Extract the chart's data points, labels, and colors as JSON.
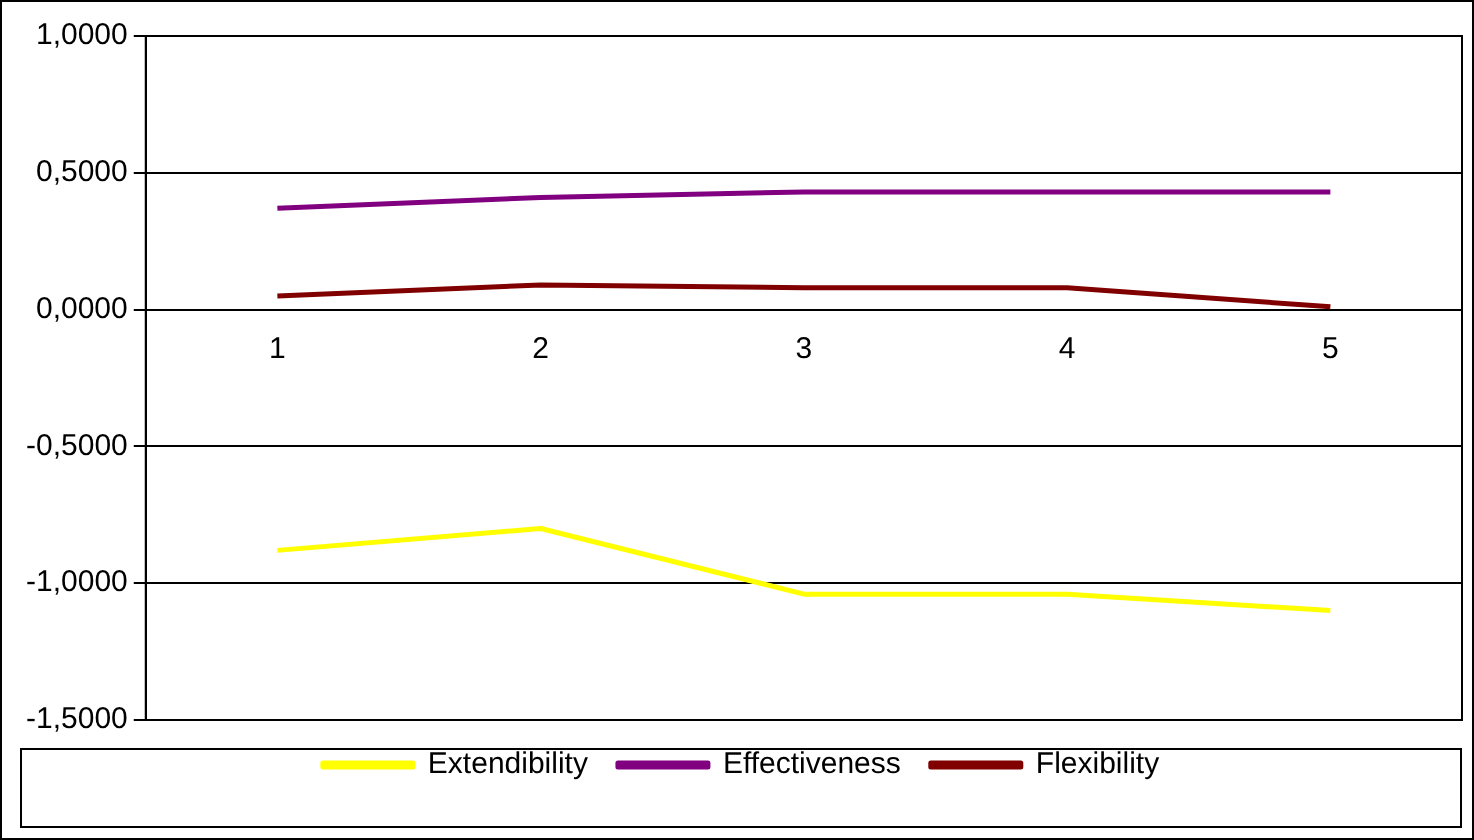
{
  "chart_data": {
    "type": "line",
    "categories": [
      "1",
      "2",
      "3",
      "4",
      "5"
    ],
    "series": [
      {
        "name": "Extendibility",
        "color": "#ffff00",
        "values": [
          -0.88,
          -0.8,
          -1.04,
          -1.04,
          -1.1
        ]
      },
      {
        "name": "Effectiveness",
        "color": "#800080",
        "values": [
          0.37,
          0.41,
          0.43,
          0.43,
          0.43
        ]
      },
      {
        "name": "Flexibility",
        "color": "#800000",
        "values": [
          0.05,
          0.09,
          0.08,
          0.08,
          0.01
        ]
      }
    ],
    "ylim": [
      -1.5,
      1
    ],
    "yticks": [
      {
        "value": -1.5,
        "label": "-1,5000"
      },
      {
        "value": -1,
        "label": "-1,0000"
      },
      {
        "value": -0.5,
        "label": "-0,5000"
      },
      {
        "value": 0,
        "label": "0,0000"
      },
      {
        "value": 0.5,
        "label": "0,5000"
      },
      {
        "value": 1,
        "label": "1,0000"
      }
    ],
    "grid": "y",
    "legend": "bottom",
    "marker": "none",
    "line_style": "solid"
  }
}
